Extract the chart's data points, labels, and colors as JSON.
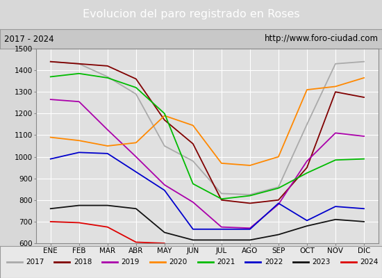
{
  "title": "Evolucion del paro registrado en Roses",
  "subtitle_left": "2017 - 2024",
  "subtitle_right": "http://www.foro-ciudad.com",
  "xlabel_months": [
    "ENE",
    "FEB",
    "MAR",
    "ABR",
    "MAY",
    "JUN",
    "JUL",
    "AGO",
    "SEP",
    "OCT",
    "NOV",
    "DIC"
  ],
  "ylim": [
    600,
    1500
  ],
  "yticks": [
    600,
    700,
    800,
    900,
    1000,
    1100,
    1200,
    1300,
    1400,
    1500
  ],
  "series": {
    "2017": {
      "color": "#aaaaaa",
      "data": [
        1440,
        1430,
        1370,
        1290,
        1050,
        980,
        830,
        825,
        860,
        1150,
        1430,
        1440
      ]
    },
    "2018": {
      "color": "#800000",
      "data": [
        1440,
        1430,
        1420,
        1360,
        1170,
        1060,
        800,
        785,
        800,
        950,
        1300,
        1275
      ]
    },
    "2019": {
      "color": "#aa00aa",
      "data": [
        1265,
        1255,
        1125,
        1000,
        870,
        790,
        675,
        670,
        780,
        980,
        1110,
        1095
      ]
    },
    "2020": {
      "color": "#ff8800",
      "data": [
        1090,
        1075,
        1050,
        1065,
        1190,
        1145,
        970,
        960,
        1000,
        1310,
        1325,
        1365
      ]
    },
    "2021": {
      "color": "#00bb00",
      "data": [
        1370,
        1385,
        1365,
        1320,
        1200,
        875,
        805,
        820,
        855,
        925,
        985,
        990
      ]
    },
    "2022": {
      "color": "#0000cc",
      "data": [
        990,
        1020,
        1015,
        930,
        845,
        665,
        665,
        665,
        785,
        705,
        770,
        760
      ]
    },
    "2023": {
      "color": "#111111",
      "data": [
        760,
        775,
        775,
        760,
        650,
        615,
        615,
        615,
        640,
        680,
        710,
        700
      ]
    },
    "2024": {
      "color": "#dd0000",
      "data": [
        700,
        695,
        675,
        605,
        600,
        null,
        null,
        null,
        null,
        null,
        null,
        null
      ]
    }
  },
  "background_color": "#d8d8d8",
  "plot_bg_color": "#e0e0e0",
  "title_bg_color": "#5599dd",
  "title_color": "#ffffff",
  "grid_color": "#ffffff",
  "legend_bg": "#e8e8e8",
  "subtitle_bg": "#c8c8c8"
}
